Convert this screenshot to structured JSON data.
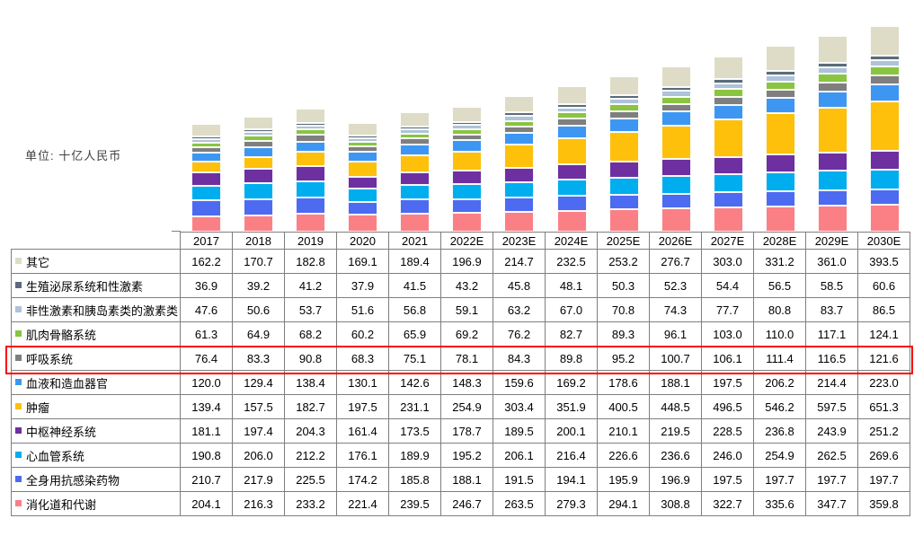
{
  "unit_label": "单位: 十亿人民币",
  "chart_data": {
    "type": "bar",
    "stacked": true,
    "title": "",
    "xlabel": "",
    "ylabel": "十亿人民币",
    "axes_visible": false,
    "gridlines": false,
    "legend_position": "table-left-column",
    "categories": [
      "2017",
      "2018",
      "2019",
      "2020",
      "2021",
      "2022E",
      "2023E",
      "2024E",
      "2025E",
      "2026E",
      "2027E",
      "2028E",
      "2029E",
      "2030E"
    ],
    "series": [
      {
        "name": "其它",
        "color": "#dedcc7",
        "values": [
          162.2,
          170.7,
          182.8,
          169.1,
          189.4,
          196.9,
          214.7,
          232.5,
          253.2,
          276.7,
          303.0,
          331.2,
          361.0,
          393.5
        ]
      },
      {
        "name": "生殖泌尿系统和性激素",
        "color": "#5b6b7b",
        "values": [
          36.9,
          39.2,
          41.2,
          37.9,
          41.5,
          43.2,
          45.8,
          48.1,
          50.3,
          52.3,
          54.4,
          56.5,
          58.5,
          60.6
        ]
      },
      {
        "name": "非性激素和胰岛素类的激素类",
        "color": "#aec3d9",
        "values": [
          47.6,
          50.6,
          53.7,
          51.6,
          56.8,
          59.1,
          63.2,
          67.0,
          70.8,
          74.3,
          77.7,
          80.8,
          83.7,
          86.5
        ]
      },
      {
        "name": "肌肉骨骼系统",
        "color": "#89c540",
        "values": [
          61.3,
          64.9,
          68.2,
          60.2,
          65.9,
          69.2,
          76.2,
          82.7,
          89.3,
          96.1,
          103.0,
          110.0,
          117.1,
          124.1
        ]
      },
      {
        "name": "呼吸系统",
        "color": "#7f7f7f",
        "values": [
          76.4,
          83.3,
          90.8,
          68.3,
          75.1,
          78.1,
          84.3,
          89.8,
          95.2,
          100.7,
          106.1,
          111.4,
          116.5,
          121.6
        ]
      },
      {
        "name": "血液和造血器官",
        "color": "#3d97f2",
        "values": [
          120.0,
          129.4,
          138.4,
          130.1,
          142.6,
          148.3,
          159.6,
          169.2,
          178.6,
          188.1,
          197.5,
          206.2,
          214.4,
          223.0
        ]
      },
      {
        "name": "肿瘤",
        "color": "#fec00b",
        "values": [
          139.4,
          157.5,
          182.7,
          197.5,
          231.1,
          254.9,
          303.4,
          351.9,
          400.5,
          448.5,
          496.5,
          546.2,
          597.5,
          651.3
        ]
      },
      {
        "name": "中枢神经系统",
        "color": "#6e2fa0",
        "values": [
          181.1,
          197.4,
          204.3,
          161.4,
          173.5,
          178.7,
          189.5,
          200.1,
          210.1,
          219.5,
          228.5,
          236.8,
          243.9,
          251.2
        ]
      },
      {
        "name": "心血管系统",
        "color": "#00aeef",
        "values": [
          190.8,
          206.0,
          212.2,
          176.1,
          189.9,
          195.2,
          206.1,
          216.4,
          226.6,
          236.6,
          246.0,
          254.9,
          262.5,
          269.6
        ]
      },
      {
        "name": "全身用抗感染药物",
        "color": "#4d6bf0",
        "values": [
          210.7,
          217.9,
          225.5,
          174.2,
          185.8,
          188.1,
          191.5,
          194.1,
          195.9,
          196.9,
          197.5,
          197.7,
          197.7,
          197.7
        ]
      },
      {
        "name": "消化道和代谢",
        "color": "#fb8086",
        "values": [
          204.1,
          216.3,
          233.2,
          221.4,
          239.5,
          246.7,
          263.5,
          279.3,
          294.1,
          308.8,
          322.7,
          335.6,
          347.7,
          359.8
        ]
      }
    ],
    "stacking_order_bottom_to_top": [
      "消化道和代谢",
      "全身用抗感染药物",
      "心血管系统",
      "中枢神经系统",
      "肿瘤",
      "血液和造血器官",
      "呼吸系统",
      "肌肉骨骼系统",
      "非性激素和胰岛素类的激素类",
      "生殖泌尿系统和性激素",
      "其它"
    ],
    "highlight": {
      "series": "呼吸系统",
      "color": "#ff0000"
    },
    "value_format": "one-decimal"
  }
}
